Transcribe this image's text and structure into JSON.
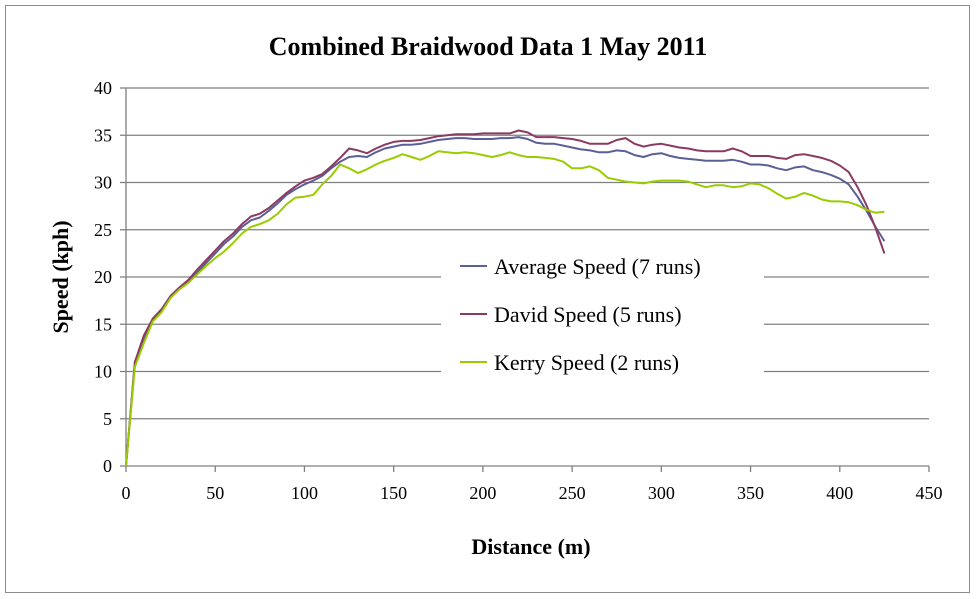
{
  "chart_data": {
    "type": "line",
    "title": "Combined Braidwood Data 1 May 2011",
    "xlabel": "Distance (m)",
    "ylabel": "Speed (kph)",
    "xlim": [
      0,
      450
    ],
    "ylim": [
      0,
      40
    ],
    "x_ticks": [
      0,
      50,
      100,
      150,
      200,
      250,
      300,
      350,
      400,
      450
    ],
    "y_ticks": [
      0,
      5,
      10,
      15,
      20,
      25,
      30,
      35,
      40
    ],
    "grid": "horizontal",
    "legend_position": "center-right",
    "series": [
      {
        "name": "Average Speed (7 runs)",
        "color": "#5b6094",
        "points": [
          [
            0,
            0
          ],
          [
            5,
            11
          ],
          [
            10,
            13.5
          ],
          [
            15,
            15.5
          ],
          [
            20,
            16.5
          ],
          [
            25,
            18
          ],
          [
            30,
            18.8
          ],
          [
            35,
            19.5
          ],
          [
            40,
            20.5
          ],
          [
            45,
            21.5
          ],
          [
            50,
            22.5
          ],
          [
            55,
            23.5
          ],
          [
            60,
            24.3
          ],
          [
            65,
            25.3
          ],
          [
            70,
            26
          ],
          [
            75,
            26.3
          ],
          [
            80,
            27
          ],
          [
            85,
            27.8
          ],
          [
            90,
            28.7
          ],
          [
            95,
            29.3
          ],
          [
            100,
            29.8
          ],
          [
            105,
            30.2
          ],
          [
            110,
            30.7
          ],
          [
            115,
            31.5
          ],
          [
            120,
            32.2
          ],
          [
            125,
            32.7
          ],
          [
            130,
            32.8
          ],
          [
            135,
            32.7
          ],
          [
            140,
            33.2
          ],
          [
            145,
            33.6
          ],
          [
            150,
            33.8
          ],
          [
            155,
            34
          ],
          [
            160,
            34
          ],
          [
            165,
            34.1
          ],
          [
            170,
            34.3
          ],
          [
            175,
            34.5
          ],
          [
            180,
            34.6
          ],
          [
            185,
            34.7
          ],
          [
            190,
            34.7
          ],
          [
            195,
            34.6
          ],
          [
            200,
            34.6
          ],
          [
            205,
            34.6
          ],
          [
            210,
            34.7
          ],
          [
            215,
            34.7
          ],
          [
            220,
            34.8
          ],
          [
            225,
            34.6
          ],
          [
            230,
            34.2
          ],
          [
            235,
            34.1
          ],
          [
            240,
            34.1
          ],
          [
            245,
            33.9
          ],
          [
            250,
            33.7
          ],
          [
            255,
            33.5
          ],
          [
            260,
            33.4
          ],
          [
            265,
            33.2
          ],
          [
            270,
            33.2
          ],
          [
            275,
            33.4
          ],
          [
            280,
            33.3
          ],
          [
            285,
            32.9
          ],
          [
            290,
            32.7
          ],
          [
            295,
            33
          ],
          [
            300,
            33.1
          ],
          [
            305,
            32.8
          ],
          [
            310,
            32.6
          ],
          [
            315,
            32.5
          ],
          [
            320,
            32.4
          ],
          [
            325,
            32.3
          ],
          [
            330,
            32.3
          ],
          [
            335,
            32.3
          ],
          [
            340,
            32.4
          ],
          [
            345,
            32.2
          ],
          [
            350,
            31.9
          ],
          [
            355,
            31.9
          ],
          [
            360,
            31.8
          ],
          [
            365,
            31.5
          ],
          [
            370,
            31.3
          ],
          [
            375,
            31.6
          ],
          [
            380,
            31.7
          ],
          [
            385,
            31.3
          ],
          [
            390,
            31.1
          ],
          [
            395,
            30.8
          ],
          [
            400,
            30.4
          ],
          [
            405,
            29.8
          ],
          [
            410,
            28.5
          ],
          [
            415,
            27
          ],
          [
            420,
            25.3
          ],
          [
            425,
            23.8
          ]
        ]
      },
      {
        "name": "David Speed (5 runs)",
        "color": "#8b3a62",
        "points": [
          [
            0,
            0
          ],
          [
            5,
            11
          ],
          [
            10,
            13.8
          ],
          [
            15,
            15.6
          ],
          [
            20,
            16.6
          ],
          [
            25,
            18
          ],
          [
            30,
            18.9
          ],
          [
            35,
            19.7
          ],
          [
            40,
            20.8
          ],
          [
            45,
            21.8
          ],
          [
            50,
            22.8
          ],
          [
            55,
            23.8
          ],
          [
            60,
            24.6
          ],
          [
            65,
            25.6
          ],
          [
            70,
            26.4
          ],
          [
            75,
            26.7
          ],
          [
            80,
            27.3
          ],
          [
            85,
            28.1
          ],
          [
            90,
            28.9
          ],
          [
            95,
            29.6
          ],
          [
            100,
            30.2
          ],
          [
            105,
            30.5
          ],
          [
            110,
            30.9
          ],
          [
            115,
            31.7
          ],
          [
            120,
            32.6
          ],
          [
            125,
            33.6
          ],
          [
            130,
            33.4
          ],
          [
            135,
            33.1
          ],
          [
            140,
            33.6
          ],
          [
            145,
            34
          ],
          [
            150,
            34.3
          ],
          [
            155,
            34.4
          ],
          [
            160,
            34.4
          ],
          [
            165,
            34.5
          ],
          [
            170,
            34.7
          ],
          [
            175,
            34.9
          ],
          [
            180,
            35
          ],
          [
            185,
            35.1
          ],
          [
            190,
            35.1
          ],
          [
            195,
            35.1
          ],
          [
            200,
            35.2
          ],
          [
            205,
            35.2
          ],
          [
            210,
            35.2
          ],
          [
            215,
            35.2
          ],
          [
            220,
            35.5
          ],
          [
            225,
            35.3
          ],
          [
            230,
            34.8
          ],
          [
            235,
            34.8
          ],
          [
            240,
            34.8
          ],
          [
            245,
            34.7
          ],
          [
            250,
            34.6
          ],
          [
            255,
            34.4
          ],
          [
            260,
            34.1
          ],
          [
            265,
            34.1
          ],
          [
            270,
            34.1
          ],
          [
            275,
            34.5
          ],
          [
            280,
            34.7
          ],
          [
            285,
            34.1
          ],
          [
            290,
            33.8
          ],
          [
            295,
            34
          ],
          [
            300,
            34.1
          ],
          [
            305,
            33.9
          ],
          [
            310,
            33.7
          ],
          [
            315,
            33.6
          ],
          [
            320,
            33.4
          ],
          [
            325,
            33.3
          ],
          [
            330,
            33.3
          ],
          [
            335,
            33.3
          ],
          [
            340,
            33.6
          ],
          [
            345,
            33.3
          ],
          [
            350,
            32.8
          ],
          [
            355,
            32.8
          ],
          [
            360,
            32.8
          ],
          [
            365,
            32.6
          ],
          [
            370,
            32.5
          ],
          [
            375,
            32.9
          ],
          [
            380,
            33
          ],
          [
            385,
            32.8
          ],
          [
            390,
            32.6
          ],
          [
            395,
            32.3
          ],
          [
            400,
            31.8
          ],
          [
            405,
            31.1
          ],
          [
            410,
            29.5
          ],
          [
            415,
            27.6
          ],
          [
            420,
            25.2
          ],
          [
            425,
            22.5
          ]
        ]
      },
      {
        "name": "Kerry Speed (2 runs)",
        "color": "#99cc00",
        "points": [
          [
            0,
            0
          ],
          [
            5,
            10.5
          ],
          [
            10,
            13
          ],
          [
            15,
            15.3
          ],
          [
            20,
            16.3
          ],
          [
            25,
            17.8
          ],
          [
            30,
            18.7
          ],
          [
            35,
            19.4
          ],
          [
            40,
            20.3
          ],
          [
            45,
            21.2
          ],
          [
            50,
            22
          ],
          [
            55,
            22.7
          ],
          [
            60,
            23.6
          ],
          [
            65,
            24.6
          ],
          [
            70,
            25.3
          ],
          [
            75,
            25.6
          ],
          [
            80,
            26
          ],
          [
            85,
            26.7
          ],
          [
            90,
            27.7
          ],
          [
            95,
            28.4
          ],
          [
            100,
            28.5
          ],
          [
            105,
            28.7
          ],
          [
            110,
            29.8
          ],
          [
            115,
            30.7
          ],
          [
            120,
            31.9
          ],
          [
            125,
            31.5
          ],
          [
            130,
            31
          ],
          [
            135,
            31.4
          ],
          [
            140,
            31.9
          ],
          [
            145,
            32.3
          ],
          [
            150,
            32.6
          ],
          [
            155,
            33
          ],
          [
            160,
            32.7
          ],
          [
            165,
            32.4
          ],
          [
            170,
            32.8
          ],
          [
            175,
            33.3
          ],
          [
            180,
            33.2
          ],
          [
            185,
            33.1
          ],
          [
            190,
            33.2
          ],
          [
            195,
            33.1
          ],
          [
            200,
            32.9
          ],
          [
            205,
            32.7
          ],
          [
            210,
            32.9
          ],
          [
            215,
            33.2
          ],
          [
            220,
            32.9
          ],
          [
            225,
            32.7
          ],
          [
            230,
            32.7
          ],
          [
            235,
            32.6
          ],
          [
            240,
            32.5
          ],
          [
            245,
            32.2
          ],
          [
            250,
            31.5
          ],
          [
            255,
            31.5
          ],
          [
            260,
            31.7
          ],
          [
            265,
            31.3
          ],
          [
            270,
            30.5
          ],
          [
            275,
            30.3
          ],
          [
            280,
            30.1
          ],
          [
            285,
            30
          ],
          [
            290,
            29.9
          ],
          [
            295,
            30.1
          ],
          [
            300,
            30.2
          ],
          [
            305,
            30.2
          ],
          [
            310,
            30.2
          ],
          [
            315,
            30.1
          ],
          [
            320,
            29.8
          ],
          [
            325,
            29.5
          ],
          [
            330,
            29.7
          ],
          [
            335,
            29.7
          ],
          [
            340,
            29.5
          ],
          [
            345,
            29.6
          ],
          [
            350,
            29.9
          ],
          [
            355,
            29.8
          ],
          [
            360,
            29.4
          ],
          [
            365,
            28.8
          ],
          [
            370,
            28.3
          ],
          [
            375,
            28.5
          ],
          [
            380,
            28.9
          ],
          [
            385,
            28.6
          ],
          [
            390,
            28.2
          ],
          [
            395,
            28
          ],
          [
            400,
            28
          ],
          [
            405,
            27.9
          ],
          [
            410,
            27.6
          ],
          [
            415,
            27.1
          ],
          [
            420,
            26.8
          ],
          [
            425,
            26.9
          ]
        ]
      }
    ]
  }
}
